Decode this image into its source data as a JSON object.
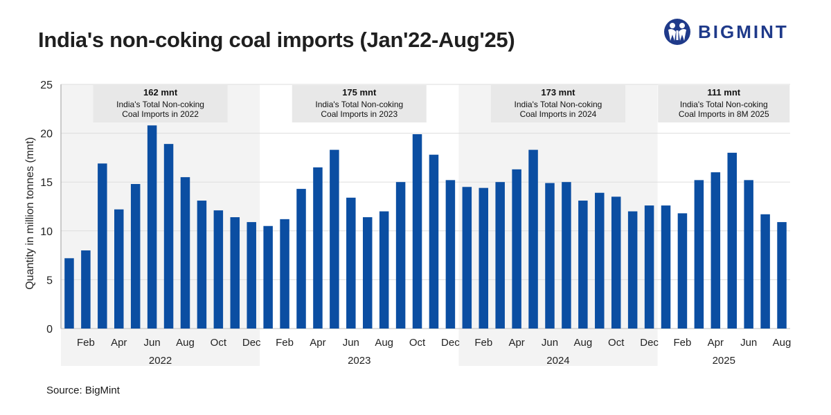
{
  "header": {
    "title": "India's non-coking coal imports (Jan'22-Aug'25)",
    "logo_text": "BIGMINT"
  },
  "footer": {
    "source": "Source: BigMint"
  },
  "colors": {
    "bar": "#0b4ea2",
    "band": "#f3f3f3",
    "label_box": "#e8e8e8",
    "logo": "#1f3a8a"
  },
  "chart_data": {
    "type": "bar",
    "title": "India's non-coking coal imports (Jan'22-Aug'25)",
    "xlabel": "",
    "ylabel": "Quantity in million tonnes (mnt)",
    "ylim": [
      0,
      25
    ],
    "yticks": [
      0,
      5,
      10,
      15,
      20,
      25
    ],
    "grid": true,
    "categories": [
      "Jan",
      "Feb",
      "Mar",
      "Apr",
      "May",
      "Jun",
      "Jul",
      "Aug",
      "Sep",
      "Oct",
      "Nov",
      "Dec",
      "Jan",
      "Feb",
      "Mar",
      "Apr",
      "May",
      "Jun",
      "Jul",
      "Aug",
      "Sep",
      "Oct",
      "Nov",
      "Dec",
      "Jan",
      "Feb",
      "Mar",
      "Apr",
      "May",
      "Jun",
      "Jul",
      "Aug",
      "Sep",
      "Oct",
      "Nov",
      "Dec",
      "Jan",
      "Feb",
      "Mar",
      "Apr",
      "May",
      "Jun",
      "Jul",
      "Aug"
    ],
    "shown_month_labels": [
      "",
      "Feb",
      "",
      "Apr",
      "",
      "Jun",
      "",
      "Aug",
      "",
      "Oct",
      "",
      "Dec",
      "",
      "Feb",
      "",
      "Apr",
      "",
      "Jun",
      "",
      "Aug",
      "",
      "Oct",
      "",
      "Dec",
      "",
      "Feb",
      "",
      "Apr",
      "",
      "Jun",
      "",
      "Aug",
      "",
      "Oct",
      "",
      "Dec",
      "",
      "Feb",
      "",
      "Apr",
      "",
      "Jun",
      "",
      "Aug"
    ],
    "values": [
      7.2,
      8.0,
      16.9,
      12.2,
      14.8,
      20.8,
      18.9,
      15.5,
      13.1,
      12.1,
      11.4,
      10.9,
      10.5,
      11.2,
      14.3,
      16.5,
      18.3,
      13.4,
      11.4,
      12.0,
      15.0,
      19.9,
      17.8,
      15.2,
      14.5,
      14.4,
      15.0,
      16.3,
      18.3,
      14.9,
      15.0,
      13.1,
      13.9,
      13.5,
      12.0,
      12.6,
      12.6,
      11.8,
      15.2,
      16.0,
      18.0,
      15.2,
      11.7,
      10.9
    ],
    "years": [
      {
        "label": "2022",
        "start": 0,
        "count": 12,
        "total": "162 mnt",
        "caption": [
          "India's Total Non-coking",
          "Coal Imports in 2022"
        ]
      },
      {
        "label": "2023",
        "start": 12,
        "count": 12,
        "total": "175 mnt",
        "caption": [
          "India's Total Non-coking",
          "Coal Imports in 2023"
        ]
      },
      {
        "label": "2024",
        "start": 24,
        "count": 12,
        "total": "173 mnt",
        "caption": [
          "India's Total Non-coking",
          "Coal Imports in 2024"
        ]
      },
      {
        "label": "2025",
        "start": 36,
        "count": 8,
        "total": "111 mnt",
        "caption": [
          "India's Total Non-coking",
          "Coal Imports in 8M 2025"
        ]
      }
    ]
  }
}
